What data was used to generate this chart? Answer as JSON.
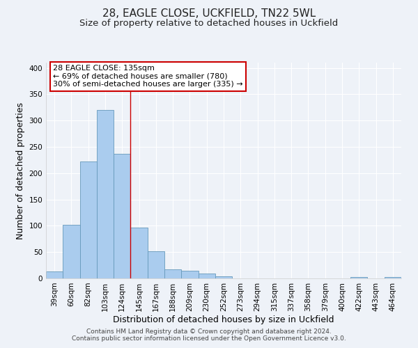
{
  "title": "28, EAGLE CLOSE, UCKFIELD, TN22 5WL",
  "subtitle": "Size of property relative to detached houses in Uckfield",
  "xlabel": "Distribution of detached houses by size in Uckfield",
  "ylabel": "Number of detached properties",
  "bar_labels": [
    "39sqm",
    "60sqm",
    "82sqm",
    "103sqm",
    "124sqm",
    "145sqm",
    "167sqm",
    "188sqm",
    "209sqm",
    "230sqm",
    "252sqm",
    "273sqm",
    "294sqm",
    "315sqm",
    "337sqm",
    "358sqm",
    "379sqm",
    "400sqm",
    "422sqm",
    "443sqm",
    "464sqm"
  ],
  "bar_values": [
    13,
    102,
    222,
    320,
    237,
    97,
    52,
    17,
    14,
    9,
    4,
    0,
    0,
    0,
    0,
    0,
    0,
    0,
    3,
    0,
    2
  ],
  "bar_color": "#aaccee",
  "bar_edge_color": "#6699bb",
  "ylim": [
    0,
    410
  ],
  "yticks": [
    0,
    50,
    100,
    150,
    200,
    250,
    300,
    350,
    400
  ],
  "annotation_title": "28 EAGLE CLOSE: 135sqm",
  "annotation_line1": "← 69% of detached houses are smaller (780)",
  "annotation_line2": "30% of semi-detached houses are larger (335) →",
  "vline_x_index": 4.5,
  "vline_color": "#cc0000",
  "annotation_box_color": "#ffffff",
  "annotation_box_edge": "#cc0000",
  "footer1": "Contains HM Land Registry data © Crown copyright and database right 2024.",
  "footer2": "Contains public sector information licensed under the Open Government Licence v3.0.",
  "background_color": "#eef2f8",
  "grid_color": "#ffffff",
  "title_fontsize": 11,
  "subtitle_fontsize": 9.5,
  "axis_label_fontsize": 9,
  "tick_fontsize": 7.5,
  "footer_fontsize": 6.5,
  "annotation_fontsize": 8
}
